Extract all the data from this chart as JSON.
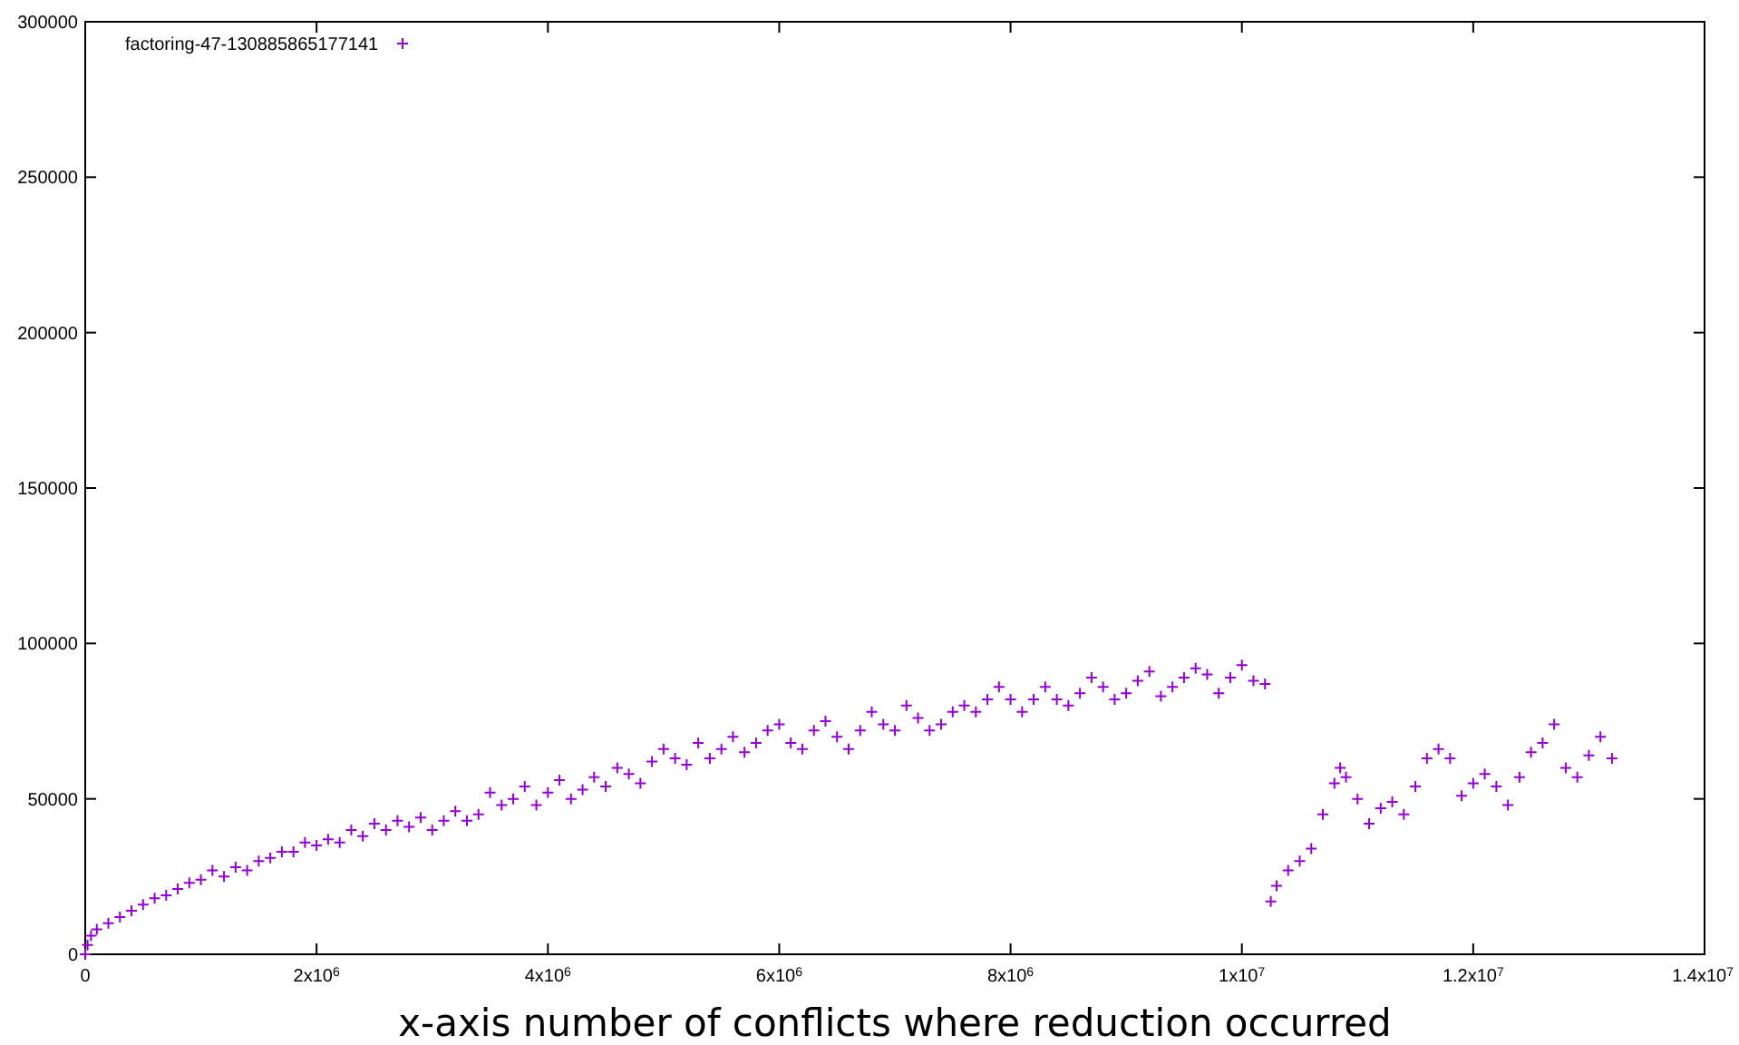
{
  "chart_data": {
    "type": "scatter",
    "xlabel": "x-axis number of conflicts where reduction occurred",
    "legend": "top left",
    "marker": "cross",
    "grid": false,
    "xlim": [
      0,
      14000000
    ],
    "ylim": [
      0,
      300000
    ],
    "xticks": [
      0,
      {
        "value": 2000000,
        "label": "2x10$^{6}$"
      },
      {
        "value": 4000000,
        "label": "4x10$^{6}$"
      },
      {
        "value": 6000000,
        "label": "6x10$^{6}$"
      },
      {
        "value": 8000000,
        "label": "8x10$^{6}$"
      },
      {
        "value": 10000000,
        "label": "1x10$^{7}$"
      },
      {
        "value": 12000000,
        "label": "1.2x10$^{7}$"
      },
      {
        "value": 14000000,
        "label": "1.4x10$^{7}$"
      }
    ],
    "yticks": [
      0,
      50000,
      100000,
      150000,
      200000,
      250000,
      300000
    ],
    "series": [
      {
        "name": "factoring-47-130885865177141",
        "color": "#9400d3",
        "x": [
          0,
          20000,
          50000,
          100000,
          200000,
          300000,
          400000,
          500000,
          600000,
          700000,
          800000,
          900000,
          1000000,
          1100000,
          1200000,
          1300000,
          1400000,
          1500000,
          1600000,
          1700000,
          1800000,
          1900000,
          2000000,
          2100000,
          2200000,
          2300000,
          2400000,
          2500000,
          2600000,
          2700000,
          2800000,
          2900000,
          3000000,
          3100000,
          3200000,
          3300000,
          3400000,
          3500000,
          3600000,
          3700000,
          3800000,
          3900000,
          4000000,
          4100000,
          4200000,
          4300000,
          4400000,
          4500000,
          4600000,
          4700000,
          4800000,
          4900000,
          5000000,
          5100000,
          5200000,
          5300000,
          5400000,
          5500000,
          5600000,
          5700000,
          5800000,
          5900000,
          6000000,
          6100000,
          6200000,
          6300000,
          6400000,
          6500000,
          6600000,
          6700000,
          6800000,
          6900000,
          7000000,
          7100000,
          7200000,
          7300000,
          7400000,
          7500000,
          7600000,
          7700000,
          7800000,
          7900000,
          8000000,
          8100000,
          8200000,
          8300000,
          8400000,
          8500000,
          8600000,
          8700000,
          8800000,
          8900000,
          9000000,
          9100000,
          9200000,
          9300000,
          9400000,
          9500000,
          9600000,
          9700000,
          9800000,
          9900000,
          10000000,
          10100000,
          10200000,
          10250000,
          10300000,
          10400000,
          10500000,
          10600000,
          10700000,
          10800000,
          10850000,
          10900000,
          11000000,
          11100000,
          11200000,
          11300000,
          11400000,
          11500000,
          11600000,
          11700000,
          11800000,
          11900000,
          12000000,
          12100000,
          12200000,
          12300000,
          12400000,
          12500000,
          12600000,
          12700000,
          12800000,
          12900000,
          13000000,
          13100000,
          13200000
        ],
        "values": [
          0,
          3000,
          6000,
          8000,
          10000,
          12000,
          14000,
          16000,
          18000,
          19000,
          21000,
          23000,
          24000,
          27000,
          25000,
          28000,
          27000,
          30000,
          31000,
          33000,
          33000,
          36000,
          35000,
          37000,
          36000,
          40000,
          38000,
          42000,
          40000,
          43000,
          41000,
          44000,
          40000,
          43000,
          46000,
          43000,
          45000,
          52000,
          48000,
          50000,
          54000,
          48000,
          52000,
          56000,
          50000,
          53000,
          57000,
          54000,
          60000,
          58000,
          55000,
          62000,
          66000,
          63000,
          61000,
          68000,
          63000,
          66000,
          70000,
          65000,
          68000,
          72000,
          74000,
          68000,
          66000,
          72000,
          75000,
          70000,
          66000,
          72000,
          78000,
          74000,
          72000,
          80000,
          76000,
          72000,
          74000,
          78000,
          80000,
          78000,
          82000,
          86000,
          82000,
          78000,
          82000,
          86000,
          82000,
          80000,
          84000,
          89000,
          86000,
          82000,
          84000,
          88000,
          91000,
          83000,
          86000,
          89000,
          92000,
          90000,
          84000,
          89000,
          93000,
          88000,
          87000,
          17000,
          22000,
          27000,
          30000,
          34000,
          45000,
          55000,
          60000,
          57000,
          50000,
          42000,
          47000,
          49000,
          45000,
          54000,
          63000,
          66000,
          63000,
          51000,
          55000,
          58000,
          54000,
          48000,
          57000,
          65000,
          68000,
          74000,
          60000,
          57000,
          64000,
          70000,
          63000
        ]
      }
    ]
  }
}
